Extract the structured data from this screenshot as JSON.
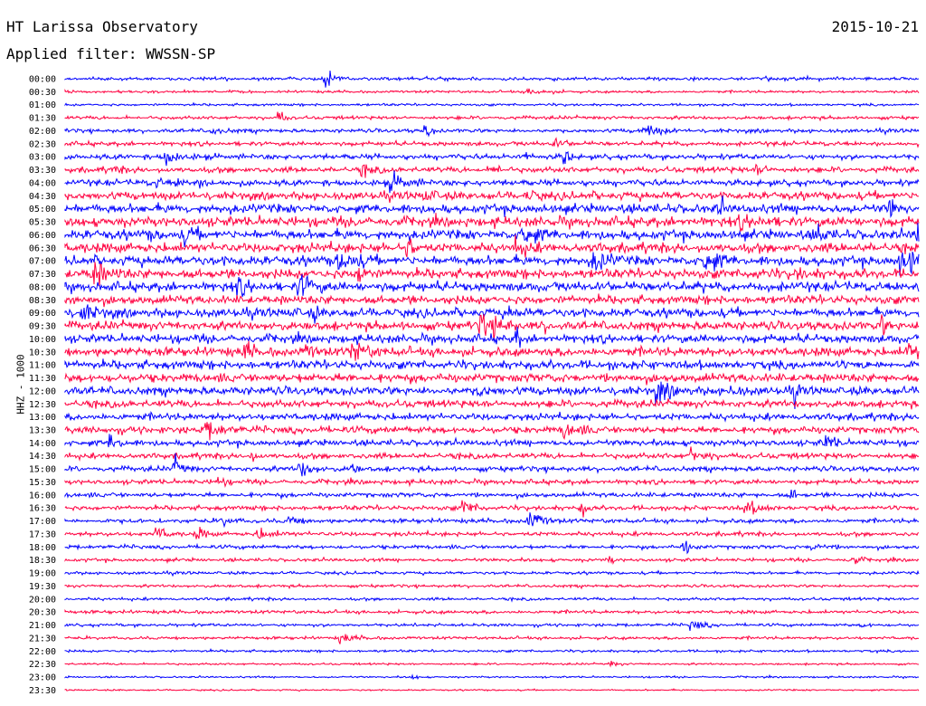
{
  "header": {
    "station": "HT Larissa Observatory",
    "date": "2015-10-21",
    "filter_label": "Applied filter: WWSSN-SP"
  },
  "chart_data": {
    "type": "line",
    "title": "HT Larissa Observatory",
    "ylabel": "HHZ - 1000",
    "xlabel": "",
    "trace_colors": [
      "#0000ff",
      "#ff0040"
    ],
    "rows": [
      {
        "label": "00:00",
        "activity": 0.3
      },
      {
        "label": "00:30",
        "activity": 0.2
      },
      {
        "label": "01:00",
        "activity": 0.2
      },
      {
        "label": "01:30",
        "activity": 0.3
      },
      {
        "label": "02:00",
        "activity": 0.35
      },
      {
        "label": "02:30",
        "activity": 0.4
      },
      {
        "label": "03:00",
        "activity": 0.5
      },
      {
        "label": "03:30",
        "activity": 0.55
      },
      {
        "label": "04:00",
        "activity": 0.6
      },
      {
        "label": "04:30",
        "activity": 0.8
      },
      {
        "label": "05:00",
        "activity": 0.95
      },
      {
        "label": "05:30",
        "activity": 1.0
      },
      {
        "label": "06:00",
        "activity": 1.0
      },
      {
        "label": "06:30",
        "activity": 1.0
      },
      {
        "label": "07:00",
        "activity": 1.0
      },
      {
        "label": "07:30",
        "activity": 1.0
      },
      {
        "label": "08:00",
        "activity": 0.95
      },
      {
        "label": "08:30",
        "activity": 0.9
      },
      {
        "label": "09:00",
        "activity": 0.9
      },
      {
        "label": "09:30",
        "activity": 0.9
      },
      {
        "label": "10:00",
        "activity": 0.85
      },
      {
        "label": "10:30",
        "activity": 0.9
      },
      {
        "label": "11:00",
        "activity": 0.9
      },
      {
        "label": "11:30",
        "activity": 0.9
      },
      {
        "label": "12:00",
        "activity": 0.85
      },
      {
        "label": "12:30",
        "activity": 0.75
      },
      {
        "label": "13:00",
        "activity": 0.7
      },
      {
        "label": "13:30",
        "activity": 0.7
      },
      {
        "label": "14:00",
        "activity": 0.6
      },
      {
        "label": "14:30",
        "activity": 0.55
      },
      {
        "label": "15:00",
        "activity": 0.5
      },
      {
        "label": "15:30",
        "activity": 0.45
      },
      {
        "label": "16:00",
        "activity": 0.45
      },
      {
        "label": "16:30",
        "activity": 0.45
      },
      {
        "label": "17:00",
        "activity": 0.4
      },
      {
        "label": "17:30",
        "activity": 0.4
      },
      {
        "label": "18:00",
        "activity": 0.35
      },
      {
        "label": "18:30",
        "activity": 0.3
      },
      {
        "label": "19:00",
        "activity": 0.25
      },
      {
        "label": "19:30",
        "activity": 0.25
      },
      {
        "label": "20:00",
        "activity": 0.25
      },
      {
        "label": "20:30",
        "activity": 0.3
      },
      {
        "label": "21:00",
        "activity": 0.25
      },
      {
        "label": "21:30",
        "activity": 0.25
      },
      {
        "label": "22:00",
        "activity": 0.2
      },
      {
        "label": "22:30",
        "activity": 0.15
      },
      {
        "label": "23:00",
        "activity": 0.12
      },
      {
        "label": "23:30",
        "activity": 0.1
      }
    ]
  }
}
